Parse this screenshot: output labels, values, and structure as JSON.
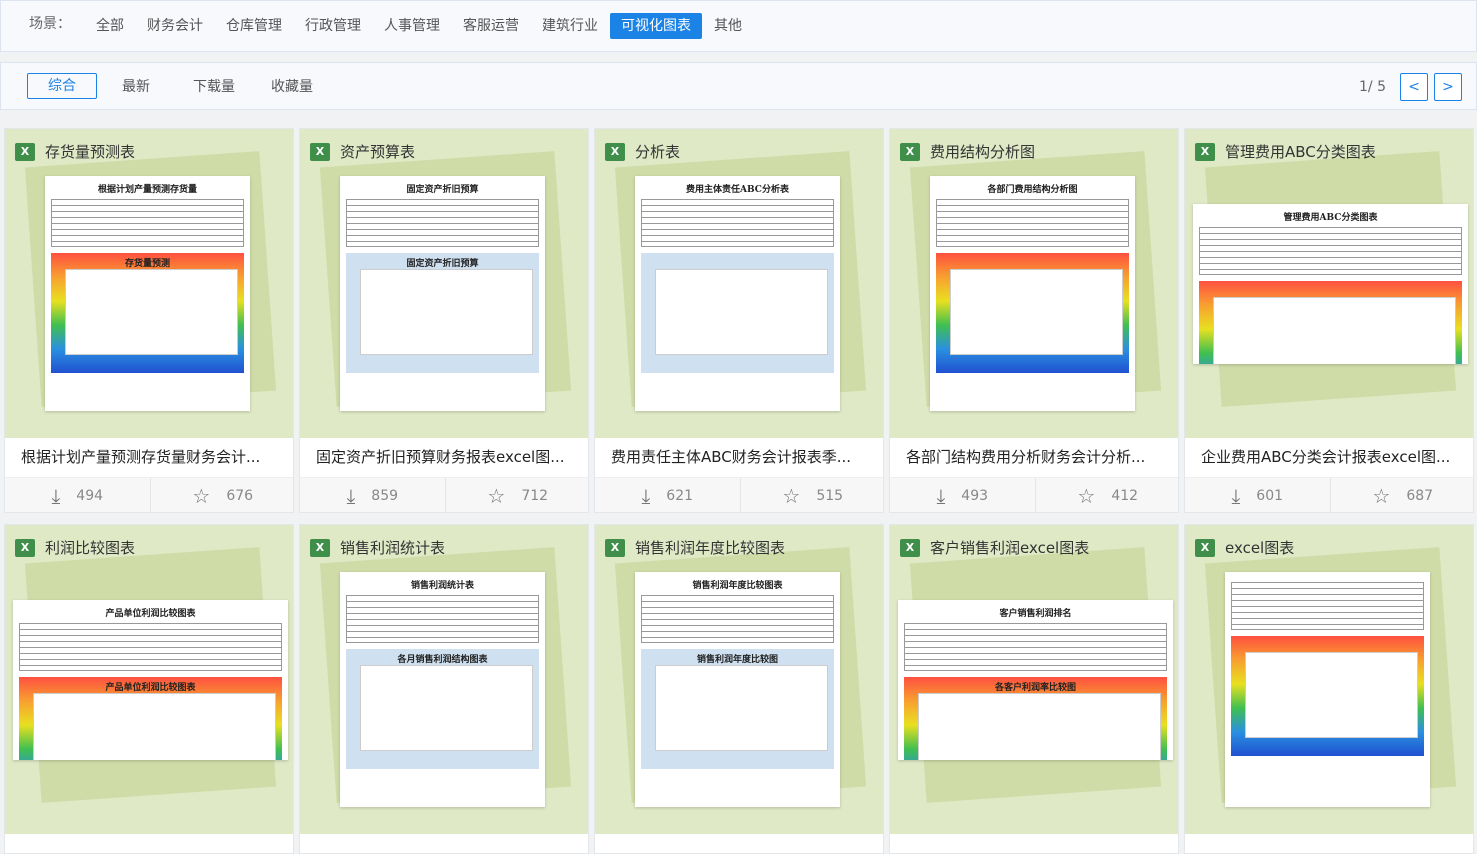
{
  "scene": {
    "label": "场景：",
    "items": [
      "全部",
      "财务会计",
      "仓库管理",
      "行政管理",
      "人事管理",
      "客服运营",
      "建筑行业",
      "可视化图表",
      "其他"
    ],
    "active": "可视化图表"
  },
  "sort": {
    "items": [
      "综合",
      "最新",
      "下载量",
      "收藏量"
    ],
    "active": "综合"
  },
  "pager": {
    "text": "1/ 5",
    "prev": "<",
    "next": ">"
  },
  "accent": "#1b82e6",
  "cards": [
    {
      "name": "存货量预测表",
      "paper_title": "根据计划产量预测存货量",
      "chart_title": "存货量预测",
      "title": "根据计划产量预测存货量财务会计...",
      "downloads": "494",
      "favorites": "676"
    },
    {
      "name": "资产预算表",
      "paper_title": "固定资产折旧预算",
      "chart_title": "固定资产折旧预算",
      "title": "固定资产折旧预算财务报表excel图...",
      "downloads": "859",
      "favorites": "712"
    },
    {
      "name": "分析表",
      "paper_title": "费用主体责任ABC分析表",
      "chart_title": "",
      "title": "费用责任主体ABC财务会计报表季...",
      "downloads": "621",
      "favorites": "515"
    },
    {
      "name": "费用结构分析图",
      "paper_title": "各部门费用结构分析图",
      "chart_title": "",
      "title": "各部门结构费用分析财务会计分析...",
      "downloads": "493",
      "favorites": "412"
    },
    {
      "name": "管理费用ABC分类图表",
      "paper_title": "管理费用ABC分类图表",
      "chart_title": "",
      "title": "企业费用ABC分类会计报表excel图...",
      "downloads": "601",
      "favorites": "687"
    },
    {
      "name": "利润比较图表",
      "paper_title": "产品单位利润比较图表",
      "chart_title": "产品单位利润比较图表"
    },
    {
      "name": "销售利润统计表",
      "paper_title": "销售利润统计表",
      "chart_title": "各月销售利润结构图表"
    },
    {
      "name": "销售利润年度比较图表",
      "paper_title": "销售利润年度比较图表",
      "chart_title": "销售利润年度比较图"
    },
    {
      "name": "客户销售利润excel图表",
      "paper_title": "客户销售利润排名",
      "chart_title": "各客户利润率比较图"
    },
    {
      "name": "excel图表",
      "paper_title": "",
      "chart_title": ""
    }
  ],
  "icons": {
    "download": "download-icon",
    "favorite": "star-icon",
    "file": "excel-icon"
  }
}
